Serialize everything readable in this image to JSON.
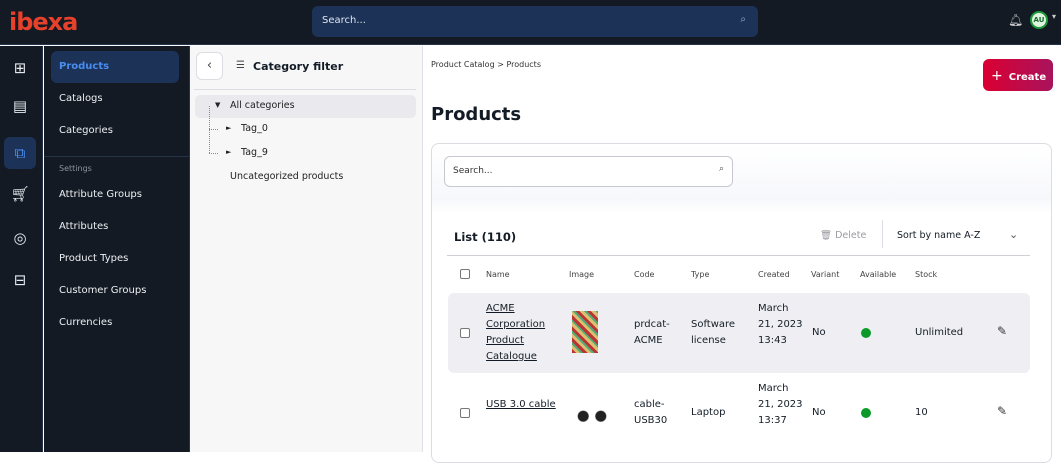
{
  "header": {
    "logo": "ibexa",
    "search_placeholder": "Search...",
    "user_initials": "AU"
  },
  "rail": {
    "icons": [
      "content-tree-icon",
      "catalog-icon",
      "products-icon",
      "commerce-cart-icon",
      "customer-target-icon",
      "admin-icon"
    ],
    "active": 2
  },
  "nav": {
    "items": [
      {
        "label": "Products",
        "active": true
      },
      {
        "label": "Catalogs"
      },
      {
        "label": "Categories"
      }
    ],
    "settings_label": "Settings",
    "settings_items": [
      {
        "label": "Attribute Groups"
      },
      {
        "label": "Attributes"
      },
      {
        "label": "Product Types"
      },
      {
        "label": "Customer Groups"
      },
      {
        "label": "Currencies"
      }
    ]
  },
  "category_filter": {
    "title": "Category filter",
    "tree": {
      "root": "All categories",
      "children": [
        "Tag_0",
        "Tag_9"
      ],
      "uncategorized": "Uncategorized products"
    }
  },
  "main": {
    "breadcrumb": [
      "Product Catalog",
      "Products"
    ],
    "breadcrumb_sep": ">",
    "create_label": "Create",
    "title": "Products",
    "search_placeholder": "Search...",
    "list_title": "List (110)",
    "delete_label": "Delete",
    "sort_value": "Sort by name A-Z",
    "columns": [
      "Name",
      "Image",
      "Code",
      "Type",
      "Created",
      "Variant",
      "Available",
      "Stock"
    ],
    "rows": [
      {
        "name": "ACME Corporation Product Catalogue",
        "image": "catalogue-thumbnail",
        "code": "prdcat-ACME",
        "type": "Software license",
        "created": "March 21, 2023 13:43",
        "variant": "No",
        "available": true,
        "stock": "Unlimited"
      },
      {
        "name": "USB 3.0 cable",
        "image": "usb-cable-thumbnail",
        "code": "cable-USB30",
        "type": "Laptop",
        "created": "March 21, 2023 13:37",
        "variant": "No",
        "available": true,
        "stock": "10"
      }
    ]
  },
  "colors": {
    "accent": "#4a8df0",
    "create": "#db0032",
    "available": "#0b9a2a",
    "dark_bg": "#131a23"
  }
}
